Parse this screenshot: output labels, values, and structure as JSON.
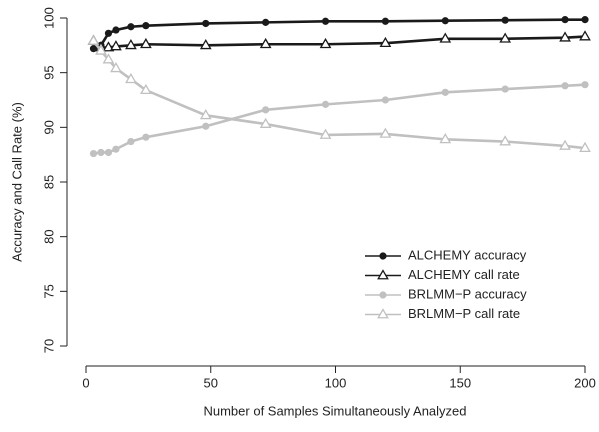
{
  "chart_data": {
    "type": "line",
    "x_label": "Number of Samples Simultaneously Analyzed",
    "y_label": "Accuracy and Call Rate (%)",
    "x": [
      3,
      6,
      9,
      12,
      18,
      24,
      48,
      72,
      96,
      120,
      144,
      168,
      192,
      200
    ],
    "series": [
      {
        "name": "ALCHEMY accuracy",
        "color": "#1a1a1a",
        "marker": "circle",
        "values": [
          97.2,
          97.5,
          98.6,
          98.9,
          99.2,
          99.3,
          99.5,
          99.6,
          99.7,
          99.7,
          99.75,
          99.8,
          99.85,
          99.85
        ]
      },
      {
        "name": "ALCHEMY call rate",
        "color": "#1a1a1a",
        "marker": "triangle",
        "values": [
          97.9,
          97.3,
          97.3,
          97.4,
          97.5,
          97.6,
          97.5,
          97.6,
          97.6,
          97.7,
          98.1,
          98.1,
          98.2,
          98.3
        ]
      },
      {
        "name": "BRLMM−P accuracy",
        "color": "#c0c0c0",
        "marker": "circle",
        "values": [
          87.6,
          87.7,
          87.7,
          88.0,
          88.7,
          89.1,
          90.1,
          91.6,
          92.1,
          92.5,
          93.2,
          93.5,
          93.8,
          93.9
        ]
      },
      {
        "name": "BRLMM−P call rate",
        "color": "#c0c0c0",
        "marker": "triangle",
        "values": [
          97.9,
          97.0,
          96.2,
          95.4,
          94.4,
          93.4,
          91.1,
          90.3,
          89.3,
          89.4,
          88.9,
          88.7,
          88.3,
          88.1
        ]
      }
    ],
    "xlim": [
      0,
      200
    ],
    "xticks": [
      0,
      50,
      100,
      150,
      200
    ],
    "ylim": [
      70,
      100
    ],
    "yticks": [
      70,
      75,
      80,
      85,
      90,
      95,
      100
    ],
    "legend": "right"
  }
}
